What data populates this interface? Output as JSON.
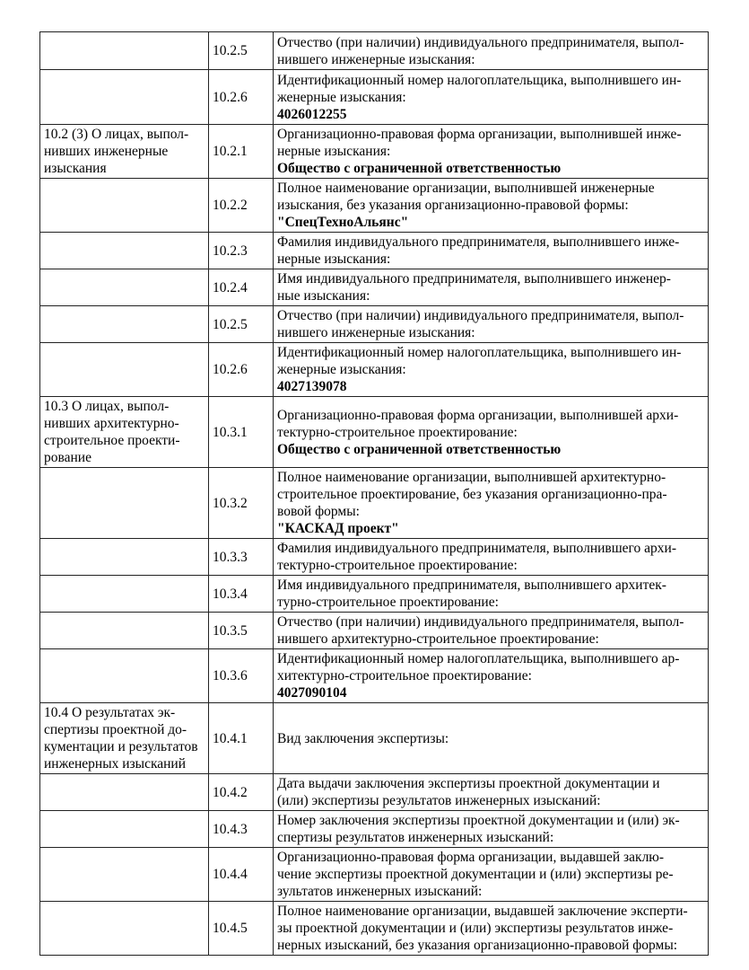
{
  "rows": [
    {
      "h": 42,
      "section": [],
      "code": "10.2.5",
      "desc": [
        "Отчество (при наличии) индивидуального предпринимателя, выпол-",
        "нившего инженерные изыскания:"
      ],
      "value": ""
    },
    {
      "h": 61,
      "section": [],
      "code": "10.2.6",
      "desc": [
        "Идентификационный номер налогоплательщика, выполнившего ин-",
        "женерные изыскания:"
      ],
      "value": "4026012255"
    },
    {
      "h": 58,
      "section": [
        "10.2 (3) О лицах, выпол-",
        "нивших инженерные",
        "изыскания"
      ],
      "code": "10.2.1",
      "desc": [
        "Организационно-правовая форма организации, выполнившей инже-",
        "нерные изыскания:"
      ],
      "value": "Общество с ограниченной ответственностью"
    },
    {
      "h": 58,
      "section": [],
      "code": "10.2.2",
      "desc": [
        "Полное наименование организации, выполнившей инженерные",
        "изыскания, без указания организационно-правовой формы:"
      ],
      "value": "\"СпецТехноАльянс\""
    },
    {
      "h": 38,
      "section": [],
      "code": "10.2.3",
      "desc": [
        "Фамилия индивидуального предпринимателя, выполнившего инже-",
        "нерные изыскания:"
      ],
      "value": ""
    },
    {
      "h": 40,
      "section": [],
      "code": "10.2.4",
      "desc": [
        "Имя индивидуального предпринимателя, выполнившего инженер-",
        "ные изыскания:"
      ],
      "value": ""
    },
    {
      "h": 40,
      "section": [],
      "code": "10.2.5",
      "desc": [
        "Отчество (при наличии) индивидуального предпринимателя, выпол-",
        "нившего инженерные изыскания:"
      ],
      "value": ""
    },
    {
      "h": 60,
      "section": [],
      "code": "10.2.6",
      "desc": [
        "Идентификационный номер налогоплательщика, выполнившего ин-",
        "женерные изыскания:"
      ],
      "value": "4027139078"
    },
    {
      "h": 76,
      "section": [
        "10.3 О лицах, выпол-",
        "нивших архитектурно-",
        "строительное проекти-",
        "рование"
      ],
      "code": "10.3.1",
      "desc": [
        "Организационно-правовая форма организации, выполнившей архи-",
        "тектурно-строительное проектирование:"
      ],
      "value": "Общество с ограниченной ответственностью"
    },
    {
      "h": 78,
      "section": [],
      "code": "10.3.2",
      "desc": [
        "Полное наименование организации, выполнившей архитектурно-",
        "строительное проектирование, без указания организационно-пра-",
        "вовой формы:"
      ],
      "value": "\"КАСКАД проект\""
    },
    {
      "h": 40,
      "section": [],
      "code": "10.3.3",
      "desc": [
        "Фамилия индивидуального предпринимателя, выполнившего архи-",
        "тектурно-строительное проектирование:"
      ],
      "value": ""
    },
    {
      "h": 40,
      "section": [],
      "code": "10.3.4",
      "desc": [
        "Имя индивидуального предпринимателя, выполнившего архитек-",
        "турно-строительное проектирование:"
      ],
      "value": ""
    },
    {
      "h": 40,
      "section": [],
      "code": "10.3.5",
      "desc": [
        "Отчество (при наличии) индивидуального предпринимателя, выпол-",
        "нившего архитектурно-строительное проектирование:"
      ],
      "value": ""
    },
    {
      "h": 58,
      "section": [],
      "code": "10.3.6",
      "desc": [
        "Идентификационный номер налогоплательщика, выполнившего ар-",
        "хитектурно-строительное проектирование:"
      ],
      "value": "4027090104"
    },
    {
      "h": 74,
      "section": [
        "10.4 О результатах эк-",
        "спертизы проектной до-",
        "кументации и результатов",
        "инженерных изысканий"
      ],
      "code": "10.4.1",
      "desc": [
        "Вид заключения экспертизы:"
      ],
      "value": ""
    },
    {
      "h": 40,
      "section": [],
      "code": "10.4.2",
      "desc": [
        "Дата выдачи заключения экспертизы проектной документации и",
        "(или) экспертизы результатов инженерных изысканий:"
      ],
      "value": ""
    },
    {
      "h": 40,
      "section": [],
      "code": "10.4.3",
      "desc": [
        "Номер заключения экспертизы проектной документации и (или) эк-",
        "спертизы результатов инженерных изысканий:"
      ],
      "value": ""
    },
    {
      "h": 60,
      "section": [],
      "code": "10.4.4",
      "desc": [
        "Организационно-правовая форма организации, выдавшей заклю-",
        "чение экспертизы проектной документации и (или) экспертизы ре-",
        "зультатов инженерных изысканий:"
      ],
      "value": ""
    },
    {
      "h": 58,
      "section": [],
      "code": "10.4.5",
      "desc": [
        "Полное наименование организации, выдавшей заключение эксперти-",
        "зы проектной документации и (или) экспертизы результатов инже-",
        "нерных изысканий, без указания организационно-правовой формы:"
      ],
      "value": ""
    }
  ]
}
